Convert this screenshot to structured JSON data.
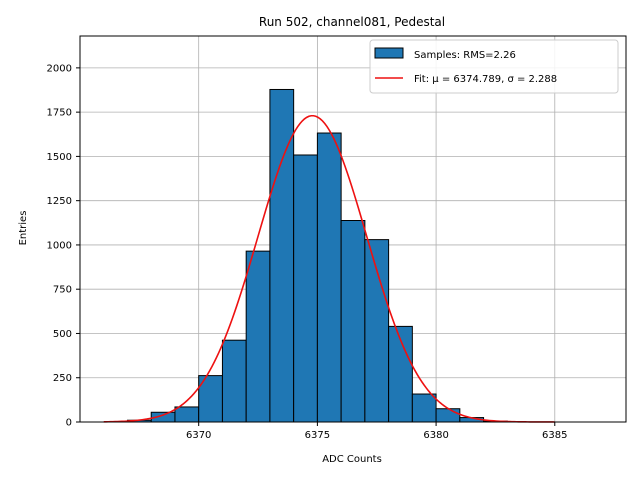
{
  "chart_data": {
    "type": "bar",
    "title": "Run 502, channel081, Pedestal",
    "xlabel": "ADC Counts",
    "ylabel": "Entries",
    "xlim": [
      6365.0,
      6388.0
    ],
    "ylim": [
      0,
      2180
    ],
    "xticks": [
      6370,
      6375,
      6380,
      6385
    ],
    "yticks": [
      0,
      250,
      500,
      750,
      1000,
      1250,
      1500,
      1750,
      2000
    ],
    "grid": true,
    "legend_position": "top-right",
    "bin_width": 1,
    "histogram": {
      "name": "Samples: RMS=2.26",
      "color": "#1f77b4",
      "bins": [
        {
          "x": 6367,
          "count": 10
        },
        {
          "x": 6368,
          "count": 55
        },
        {
          "x": 6369,
          "count": 85
        },
        {
          "x": 6370,
          "count": 262
        },
        {
          "x": 6371,
          "count": 462
        },
        {
          "x": 6372,
          "count": 965
        },
        {
          "x": 6373,
          "count": 1878
        },
        {
          "x": 6374,
          "count": 1508
        },
        {
          "x": 6375,
          "count": 1632
        },
        {
          "x": 6376,
          "count": 1138
        },
        {
          "x": 6377,
          "count": 1030
        },
        {
          "x": 6378,
          "count": 540
        },
        {
          "x": 6379,
          "count": 158
        },
        {
          "x": 6380,
          "count": 75
        },
        {
          "x": 6381,
          "count": 25
        },
        {
          "x": 6382,
          "count": 5
        }
      ]
    },
    "fit": {
      "label": "Fit: μ = 6374.789, σ = 2.288",
      "color": "#ee1111",
      "function": "gaussian",
      "mu": 6374.789,
      "sigma": 2.288,
      "amplitude": 1730,
      "x_range": [
        6366,
        6385
      ]
    }
  }
}
